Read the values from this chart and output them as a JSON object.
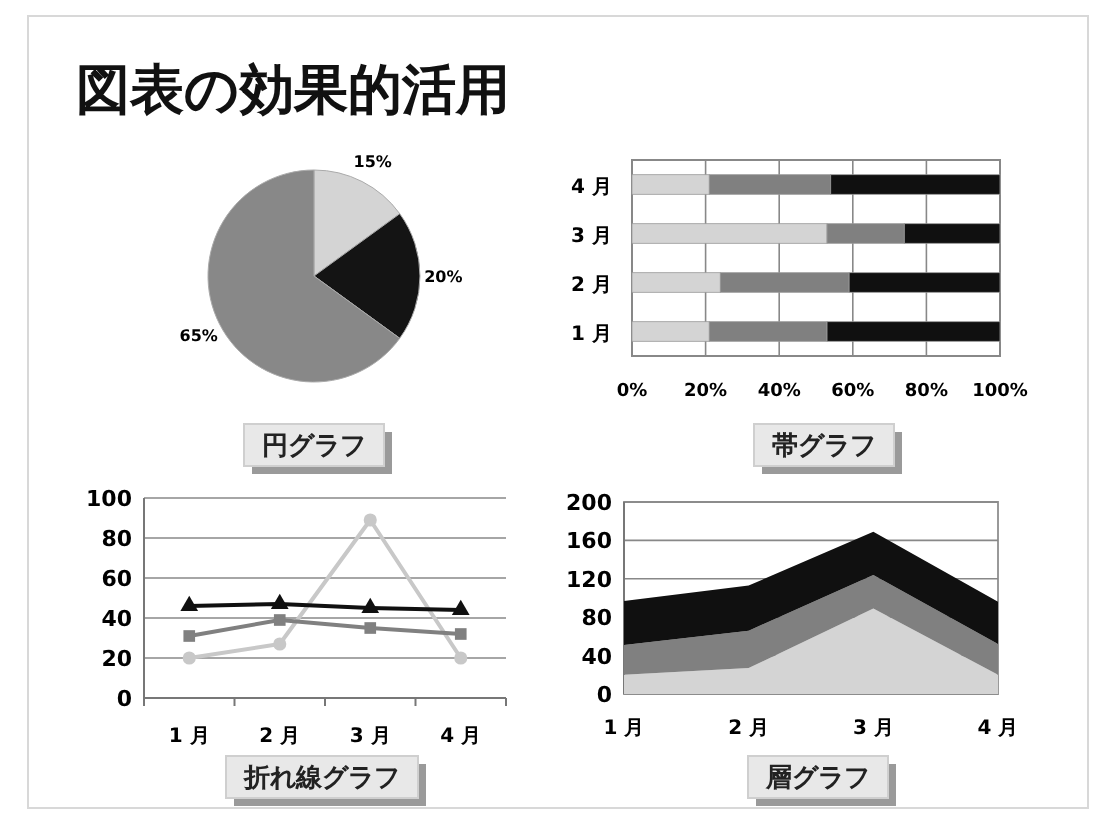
{
  "chart_data": [
    {
      "type": "pie",
      "title": "円グラフ",
      "annotations": [
        "図表の効果的活用"
      ],
      "categories": [
        null,
        null,
        null
      ],
      "values": [
        15,
        20,
        65
      ],
      "colors": [
        "#d4d4d4",
        "#141414",
        "#888888"
      ],
      "value_labels": [
        "15%",
        "20%",
        "65%"
      ],
      "legend": false
    },
    {
      "type": "bar",
      "title": "帯グラフ",
      "orientation": "horizontal",
      "stacked": true,
      "categories": [
        "4 月",
        "3 月",
        "2 月",
        "1 月"
      ],
      "series": [
        {
          "color": "#d4d4d4",
          "values": [
            21,
            53,
            24,
            21
          ]
        },
        {
          "color": "#808080",
          "values": [
            33,
            21,
            35,
            32
          ]
        },
        {
          "color": "#101010",
          "values": [
            46,
            26,
            41,
            47
          ]
        }
      ],
      "xlim": [
        0,
        100
      ],
      "xticks": [
        {
          "value": 0,
          "label": "0%"
        },
        {
          "value": 20,
          "label": "20%"
        },
        {
          "value": 40,
          "label": "40%"
        },
        {
          "value": 60,
          "label": "60%"
        },
        {
          "value": 80,
          "label": "80%"
        },
        {
          "value": 100,
          "label": "100%"
        }
      ],
      "grid": "x",
      "legend": false
    },
    {
      "type": "line",
      "title": "折れ線グラフ",
      "categories": [
        "1 月",
        "2 月",
        "3 月",
        "4 月"
      ],
      "series": [
        {
          "color": "#c8c8c8",
          "marker": "circle",
          "values": [
            20,
            27,
            89,
            20
          ]
        },
        {
          "color": "#808080",
          "marker": "square",
          "values": [
            31,
            39,
            35,
            32
          ]
        },
        {
          "color": "#101010",
          "marker": "triangle",
          "values": [
            46,
            47,
            45,
            44
          ]
        }
      ],
      "ylim": [
        0,
        100
      ],
      "yticks": [
        0,
        20,
        40,
        60,
        80,
        100
      ],
      "grid": "y",
      "legend": false
    },
    {
      "type": "area",
      "title": "層グラフ",
      "stacked": true,
      "categories": [
        "1 月",
        "2 月",
        "3 月",
        "4 月"
      ],
      "series": [
        {
          "color": "#d4d4d4",
          "values": [
            20,
            27,
            89,
            20
          ]
        },
        {
          "color": "#808080",
          "values": [
            31,
            39,
            35,
            32
          ]
        },
        {
          "color": "#101010",
          "values": [
            46,
            47,
            45,
            44
          ]
        }
      ],
      "ylim": [
        0,
        200
      ],
      "yticks": [
        0,
        40,
        80,
        120,
        160,
        200
      ],
      "grid": "y",
      "legend": false
    }
  ]
}
